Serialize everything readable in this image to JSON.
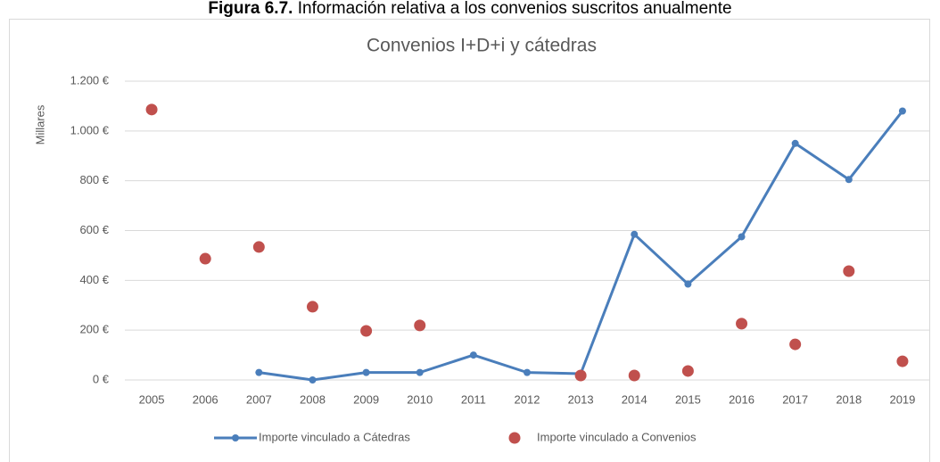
{
  "caption": {
    "label": "Figura 6.7.",
    "text": "Información relativa a los convenios suscritos anualmente"
  },
  "chart_data": {
    "type": "line",
    "title": "Convenios I+D+i y cátedras",
    "ylabel": "Millares",
    "categories": [
      "2005",
      "2006",
      "2007",
      "2008",
      "2009",
      "2010",
      "2011",
      "2012",
      "2013",
      "2014",
      "2015",
      "2016",
      "2017",
      "2018",
      "2019"
    ],
    "series": [
      {
        "name": "Importe vinculado a Cátedras",
        "color": "#4a7ebb",
        "style": "line",
        "values": [
          null,
          null,
          30,
          0,
          30,
          30,
          100,
          30,
          25,
          585,
          385,
          575,
          950,
          805,
          1080
        ]
      },
      {
        "name": "Importe vinculado a Convenios",
        "color": "#c0504d",
        "style": "markers",
        "values": [
          1086,
          487,
          534,
          294,
          197,
          219,
          null,
          null,
          18,
          18,
          36,
          226,
          143,
          437,
          75
        ]
      }
    ],
    "ylim": [
      0,
      1200
    ],
    "yticks": [
      {
        "value": 0,
        "label": "0 €"
      },
      {
        "value": 200,
        "label": "200 €"
      },
      {
        "value": 400,
        "label": "400 €"
      },
      {
        "value": 600,
        "label": "600 €"
      },
      {
        "value": 800,
        "label": "800 €"
      },
      {
        "value": 1000,
        "label": "1.000 €"
      },
      {
        "value": 1200,
        "label": "1.200 €"
      }
    ],
    "grid": true,
    "legend": "bottom"
  }
}
